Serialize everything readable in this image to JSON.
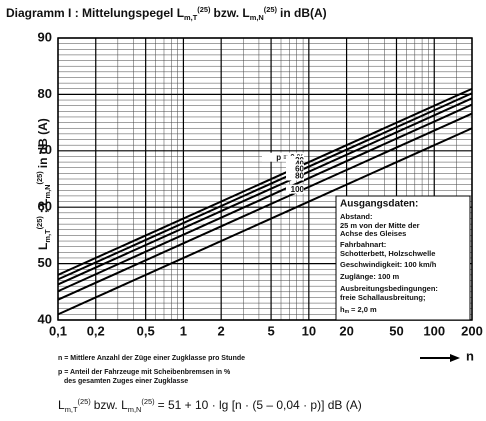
{
  "chart_data": {
    "type": "line",
    "title": [
      "Diagramm I : Mittelungspegel L",
      "m,T",
      "(25)",
      "bzw. L",
      "m,N",
      "(25)",
      "in dB(A)"
    ],
    "y_label": [
      "L",
      "m,T",
      "(25)",
      "; L",
      "m,N",
      "(25)",
      "in dB (A)"
    ],
    "x_label": "n",
    "log_x": true,
    "grid": true,
    "xlim": [
      0.1,
      200
    ],
    "ylim": [
      40,
      90
    ],
    "xticks": [
      {
        "value": 0.1,
        "label": "0,1"
      },
      {
        "value": 0.2,
        "label": "0,2"
      },
      {
        "value": 0.5,
        "label": "0,5"
      },
      1,
      2,
      5,
      10,
      20,
      50,
      100,
      200
    ],
    "yticks": [
      40,
      50,
      60,
      70,
      80,
      90
    ],
    "xminor": [
      0.3,
      0.4,
      0.6,
      0.7,
      0.8,
      0.9,
      3,
      4,
      6,
      7,
      8,
      9,
      30,
      40,
      60,
      70,
      80,
      90,
      150
    ],
    "yminor": [
      41,
      42,
      43,
      44,
      45,
      46,
      47,
      48,
      49,
      51,
      52,
      53,
      54,
      55,
      56,
      57,
      58,
      59,
      61,
      62,
      63,
      64,
      65,
      66,
      67,
      68,
      69,
      71,
      72,
      73,
      74,
      75,
      76,
      77,
      78,
      79,
      81,
      82,
      83,
      84,
      85,
      86,
      87,
      88,
      89
    ],
    "x": [
      0.1,
      200
    ],
    "series": [
      {
        "name": "p =  0 %",
        "color": "#000",
        "values": [
          48,
          81
        ]
      },
      {
        "name": "20",
        "color": "#000",
        "values": [
          47.2,
          80.2
        ]
      },
      {
        "name": "40",
        "color": "#000",
        "values": [
          46.3,
          79.3
        ]
      },
      {
        "name": "60",
        "color": "#000",
        "values": [
          45.1,
          78.2
        ]
      },
      {
        "name": "80",
        "color": "#000",
        "values": [
          43.6,
          76.6
        ]
      },
      {
        "name": "100",
        "color": "#000",
        "values": [
          41,
          74
        ]
      }
    ],
    "box": [
      "Ausgangsdaten:",
      "Abstand:",
      "25 m von der Mitte der",
      "Achse des Gleises",
      "Fahrbahnart:",
      "Schotterbett, Holzschwelle",
      "Geschwindigkeit: 100 km/h",
      "Zuglänge: 100 m",
      "Ausbreitungsbedingungen:",
      "freie Schallausbreitung;",
      "h",
      "m",
      "= 2,0 m"
    ],
    "notes": [
      "n = Mittlere Anzahl der Züge einer Zugklasse pro Stunde",
      "p = Anteil der Fahrzeuge mit Scheibenbremsen in %",
      "des gesamten Zuges einer Zugklasse"
    ],
    "formula": [
      "L",
      "m,T",
      "(25)",
      "bzw. L",
      "m,N",
      "(25)",
      "= 51 + 10 · lg  [n · (5 – 0,04 · p)]     dB (A)"
    ]
  }
}
